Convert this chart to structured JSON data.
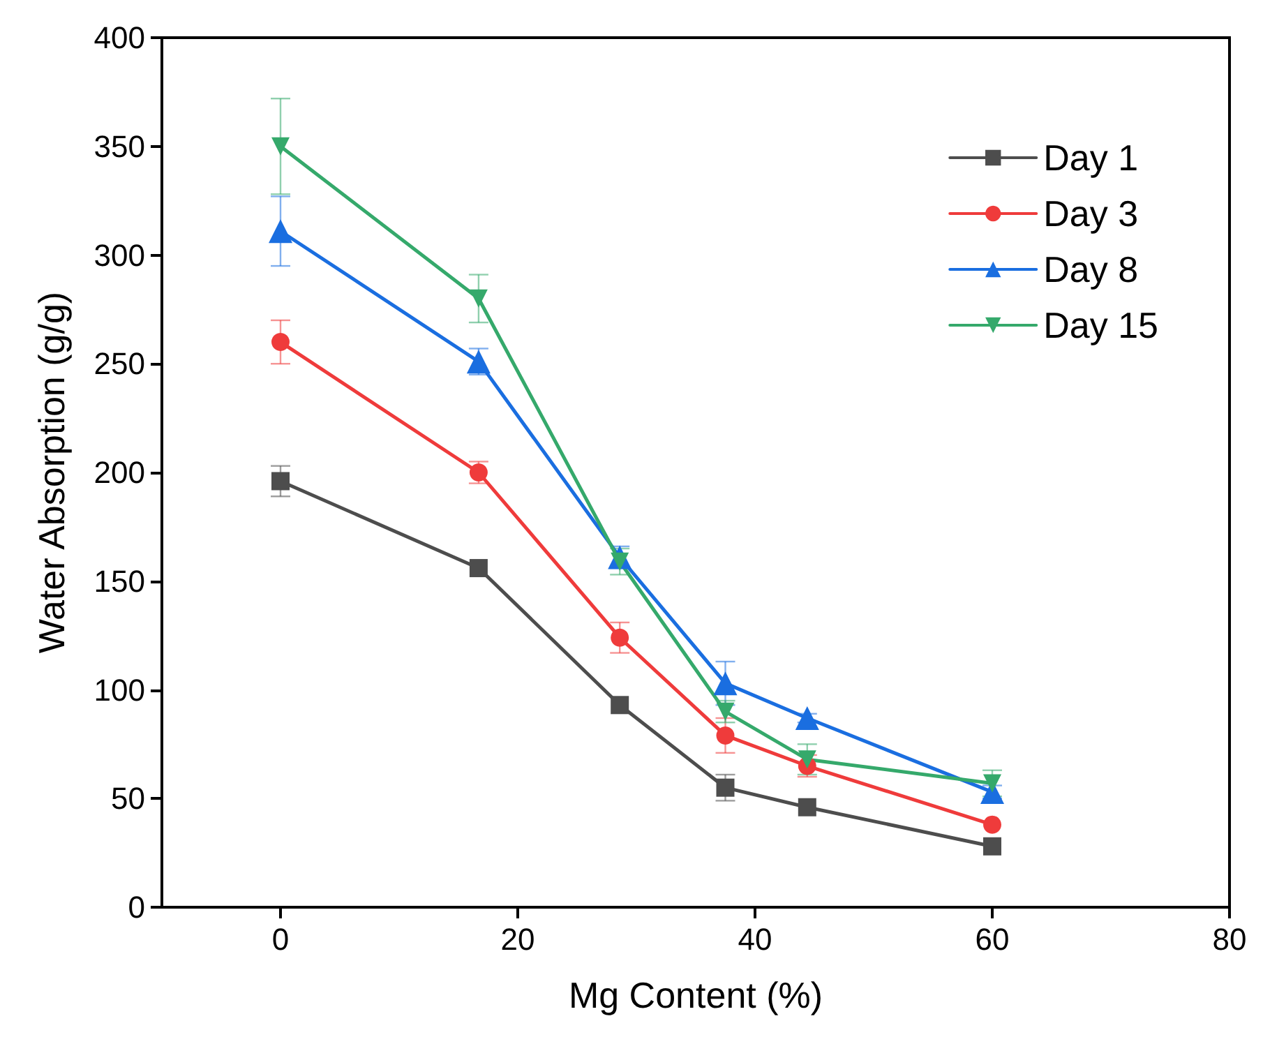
{
  "chart_data": {
    "type": "line",
    "xlabel": "Mg Content (%)",
    "ylabel": "Water Absorption (g/g)",
    "x": [
      0,
      16.7,
      28.6,
      37.5,
      44.4,
      60
    ],
    "xlim": [
      -10,
      80
    ],
    "xticks": [
      0,
      20,
      40,
      60,
      80
    ],
    "ylim": [
      0,
      400
    ],
    "yticks": [
      0,
      50,
      100,
      150,
      200,
      250,
      300,
      350,
      400
    ],
    "grid": false,
    "legend": "top right",
    "line_style": "solid",
    "series": [
      {
        "name": "Day 1",
        "color": "#4d4d4d",
        "marker": "square",
        "values": [
          196,
          156,
          93,
          55,
          46,
          28
        ],
        "errors": [
          7,
          null,
          null,
          6,
          null,
          null
        ]
      },
      {
        "name": "Day 3",
        "color": "#ef3b3b",
        "marker": "circle",
        "values": [
          260,
          200,
          124,
          79,
          65,
          38
        ],
        "errors": [
          10,
          5,
          7,
          8,
          5,
          null
        ]
      },
      {
        "name": "Day 8",
        "color": "#1a6ee0",
        "marker": "triangle",
        "values": [
          311,
          251,
          161,
          103,
          87,
          53
        ],
        "errors": [
          16,
          6,
          5,
          10,
          2,
          3
        ]
      },
      {
        "name": "Day 15",
        "color": "#35a96b",
        "marker": "triangle-down",
        "values": [
          350,
          280,
          159,
          90,
          68,
          57
        ],
        "errors": [
          22,
          11,
          6,
          5,
          7,
          6
        ]
      }
    ]
  }
}
